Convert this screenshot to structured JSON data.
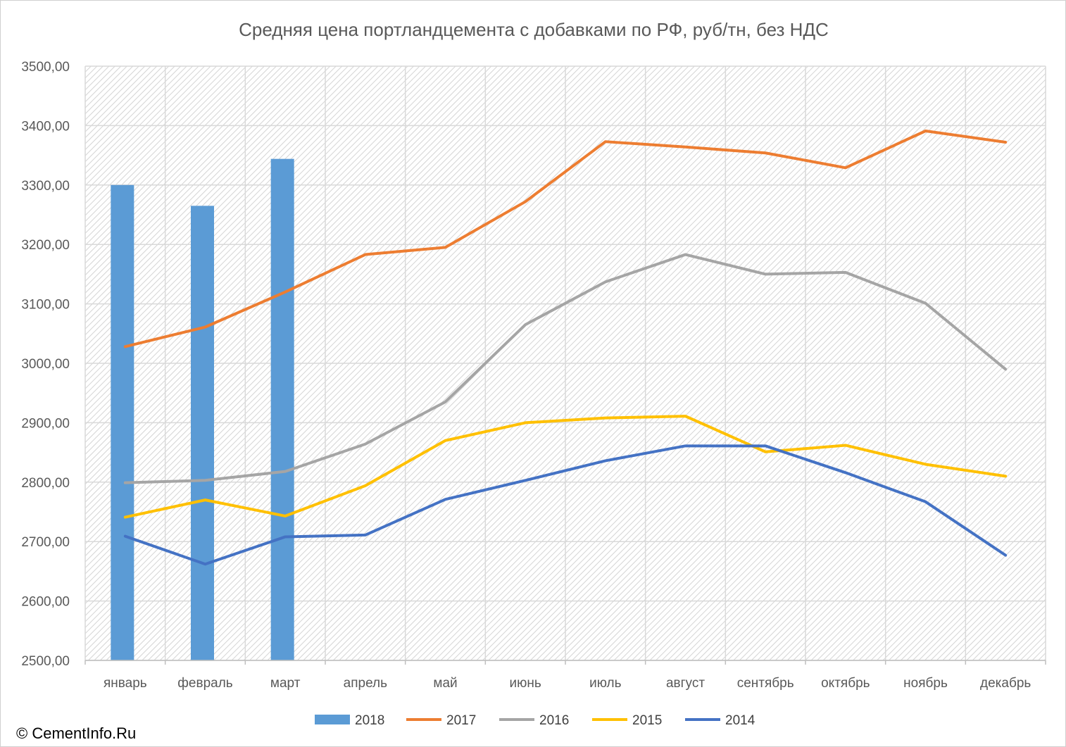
{
  "chart_data": {
    "type": "bar",
    "title": "Средняя цена портландцемента с добавками по РФ, руб/тн, без НДС",
    "xlabel": "",
    "ylabel": "",
    "ylim": [
      2500,
      3500
    ],
    "yticks": [
      "2500,00",
      "2600,00",
      "2700,00",
      "2800,00",
      "2900,00",
      "3000,00",
      "3100,00",
      "3200,00",
      "3300,00",
      "3400,00",
      "3500,00"
    ],
    "categories": [
      "январь",
      "февраль",
      "март",
      "апрель",
      "май",
      "июнь",
      "июль",
      "август",
      "сентябрь",
      "октябрь",
      "ноябрь",
      "декабрь"
    ],
    "grid": true,
    "legend_position": "bottom",
    "series": [
      {
        "name": "2018",
        "type": "bar",
        "color": "#5b9bd5",
        "values": [
          3300,
          3265,
          3344,
          null,
          null,
          null,
          null,
          null,
          null,
          null,
          null,
          null
        ]
      },
      {
        "name": "2017",
        "type": "line",
        "color": "#ed7d31",
        "values": [
          3028,
          3061,
          3120,
          3183,
          3195,
          3272,
          3373,
          3364,
          3354,
          3329,
          3391,
          3372
        ]
      },
      {
        "name": "2016",
        "type": "line",
        "color": "#a5a5a5",
        "values": [
          2799,
          2803,
          2818,
          2864,
          2935,
          3065,
          3137,
          3183,
          3150,
          3153,
          3101,
          2990
        ]
      },
      {
        "name": "2015",
        "type": "line",
        "color": "#ffc000",
        "values": [
          2741,
          2770,
          2743,
          2794,
          2870,
          2900,
          2908,
          2911,
          2851,
          2862,
          2830,
          2810
        ]
      },
      {
        "name": "2014",
        "type": "line",
        "color": "#4472c4",
        "values": [
          2709,
          2662,
          2708,
          2711,
          2771,
          2803,
          2836,
          2861,
          2861,
          2816,
          2767,
          2677
        ]
      }
    ]
  },
  "credit": "© CementInfo.Ru"
}
